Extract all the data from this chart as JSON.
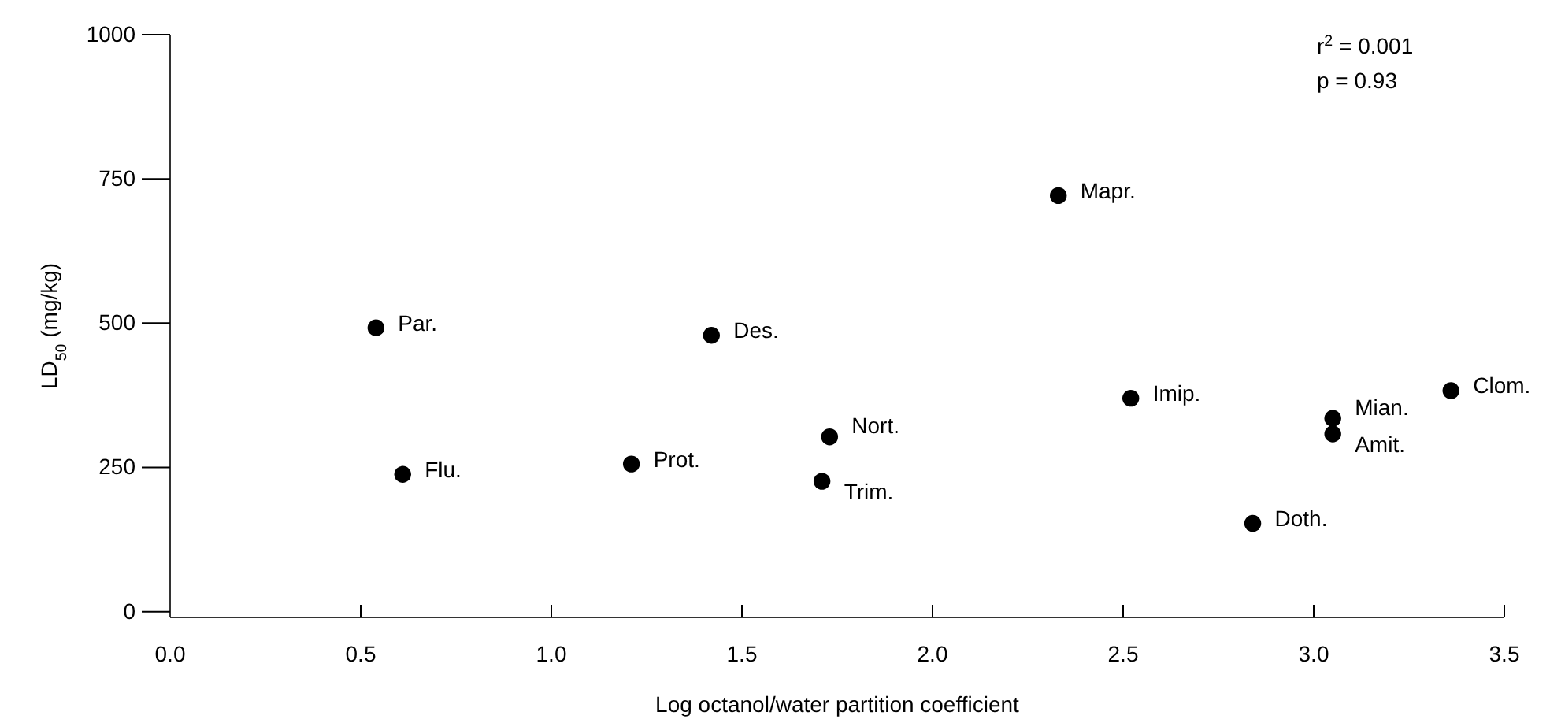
{
  "chart_data": {
    "type": "scatter",
    "xlabel": "Log octanol/water partition coefficient",
    "ylabel": "LD$_{50}$ (mg/kg)",
    "xlim": [
      0,
      3.5
    ],
    "xticks": [
      {
        "value": 0,
        "label": "0.0"
      },
      0.5,
      {
        "value": 1,
        "label": "1.0"
      },
      1.5,
      {
        "value": 2,
        "label": "2.0"
      },
      2.5,
      {
        "value": 3,
        "label": "3.0"
      },
      3.5
    ],
    "ylim": [
      -10,
      1000
    ],
    "yticks": [
      0,
      250,
      500,
      750,
      1000
    ],
    "marker": "circle",
    "grid": false,
    "series": [
      {
        "color": "#000000",
        "x": [
          0.54,
          0.61,
          1.21,
          1.42,
          1.73,
          1.71,
          2.33,
          2.52,
          3.05,
          3.05,
          3.36,
          2.84
        ],
        "values": [
          492,
          238,
          256,
          479,
          303,
          226,
          721,
          370,
          335,
          308,
          383,
          153
        ]
      }
    ],
    "annotations": [
      {
        "text": "Par.",
        "x": 0.54,
        "y": 492
      },
      {
        "text": "Flu.",
        "x": 0.61,
        "y": 238
      },
      {
        "text": "Prot.",
        "x": 1.21,
        "y": 256
      },
      {
        "text": "Des.",
        "x": 1.42,
        "y": 479
      },
      {
        "text": "Nort.",
        "x": 1.73,
        "y": 303
      },
      {
        "text": "Trim.",
        "x": 1.71,
        "y": 226
      },
      {
        "text": "Mapr.",
        "x": 2.33,
        "y": 721
      },
      {
        "text": "Imip.",
        "x": 2.52,
        "y": 370
      },
      {
        "text": "Mian.",
        "x": 3.05,
        "y": 335
      },
      {
        "text": "Amit.",
        "x": 3.05,
        "y": 308
      },
      {
        "text": "Clom.",
        "x": 3.36,
        "y": 383
      },
      {
        "text": "Doth.",
        "x": 2.84,
        "y": 153
      },
      "r$^{2}$ = 0.001",
      "p = 0.93"
    ]
  }
}
